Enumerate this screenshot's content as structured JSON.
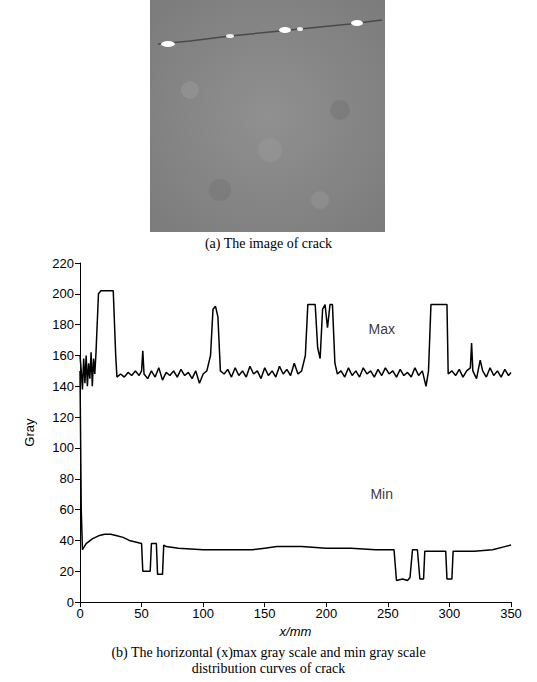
{
  "figure": {
    "caption_a": "(a) The image of crack",
    "caption_b": "(b) The horizontal (x)max gray scale and min gray scale distribution curves of crack"
  },
  "chart_data": {
    "type": "line",
    "x_label": "x/mm",
    "y_label": "Gray",
    "xlim": [
      0,
      350
    ],
    "xticks": [
      0,
      50,
      100,
      150,
      200,
      250,
      300,
      350
    ],
    "ylim": [
      0,
      220
    ],
    "yticks": [
      0,
      20,
      40,
      60,
      80,
      100,
      120,
      140,
      160,
      180,
      200,
      220
    ],
    "grid": false,
    "annotations": [
      {
        "text": "Max",
        "x": 245,
        "y": 177
      },
      {
        "text": "Min",
        "x": 245,
        "y": 70
      }
    ],
    "series": [
      {
        "color": "#000000",
        "x": [
          0,
          1,
          2,
          3,
          4,
          5,
          6,
          7,
          8,
          9,
          10,
          11,
          12,
          13,
          15,
          17,
          27,
          29,
          30,
          33,
          36,
          39,
          42,
          45,
          48,
          50,
          51,
          52,
          55,
          58,
          61,
          64,
          67,
          70,
          73,
          76,
          79,
          82,
          85,
          88,
          91,
          94,
          97,
          100,
          103,
          106,
          108,
          110,
          112,
          114,
          117,
          120,
          123,
          126,
          129,
          132,
          135,
          138,
          141,
          144,
          147,
          150,
          153,
          156,
          159,
          162,
          165,
          168,
          171,
          174,
          177,
          180,
          183,
          185,
          191,
          193,
          195,
          197,
          199,
          201,
          203,
          205,
          207,
          209,
          212,
          215,
          218,
          221,
          224,
          227,
          230,
          233,
          236,
          239,
          242,
          245,
          248,
          251,
          254,
          257,
          260,
          263,
          266,
          269,
          272,
          275,
          278,
          281,
          283,
          285,
          298,
          299,
          302,
          305,
          308,
          311,
          314,
          317,
          318,
          319,
          322,
          325,
          327,
          330,
          333,
          336,
          339,
          342,
          345,
          348,
          350
        ],
        "values": [
          160,
          150,
          138,
          158,
          142,
          160,
          140,
          155,
          145,
          162,
          140,
          158,
          148,
          162,
          200,
          202,
          202,
          160,
          146,
          148,
          146,
          149,
          147,
          150,
          147,
          150,
          163,
          148,
          145,
          150,
          146,
          152,
          144,
          149,
          147,
          150,
          146,
          151,
          147,
          149,
          145,
          150,
          142,
          148,
          150,
          160,
          190,
          192,
          185,
          150,
          148,
          151,
          146,
          152,
          147,
          150,
          146,
          153,
          148,
          150,
          145,
          152,
          147,
          150,
          146,
          153,
          148,
          151,
          147,
          155,
          148,
          150,
          160,
          193,
          193,
          165,
          158,
          190,
          193,
          178,
          193,
          193,
          155,
          148,
          150,
          146,
          152,
          147,
          150,
          146,
          152,
          148,
          150,
          146,
          151,
          147,
          152,
          148,
          150,
          146,
          151,
          147,
          149,
          146,
          152,
          147,
          150,
          140,
          150,
          193,
          193,
          148,
          150,
          147,
          151,
          146,
          150,
          152,
          168,
          150,
          145,
          157,
          150,
          146,
          152,
          147,
          150,
          146,
          151,
          147,
          149
        ]
      },
      {
        "color": "#000000",
        "x": [
          0,
          1,
          2,
          5,
          10,
          15,
          20,
          25,
          30,
          35,
          40,
          45,
          50,
          51,
          57,
          58,
          62,
          63,
          67,
          68,
          70,
          80,
          100,
          120,
          140,
          150,
          160,
          180,
          200,
          220,
          240,
          255,
          257,
          262,
          266,
          268,
          270,
          274,
          276,
          279,
          280,
          297,
          298,
          302,
          303,
          320,
          335,
          345,
          350
        ],
        "values": [
          150,
          60,
          34,
          38,
          41,
          43,
          44,
          44,
          43,
          42,
          40,
          39,
          38,
          20,
          20,
          38,
          38,
          18,
          18,
          37,
          36,
          35,
          34,
          34,
          34,
          35,
          36,
          36,
          35,
          35,
          34,
          34,
          14,
          15,
          14,
          16,
          34,
          34,
          15,
          15,
          33,
          33,
          15,
          15,
          33,
          33,
          34,
          36,
          37
        ]
      }
    ]
  }
}
